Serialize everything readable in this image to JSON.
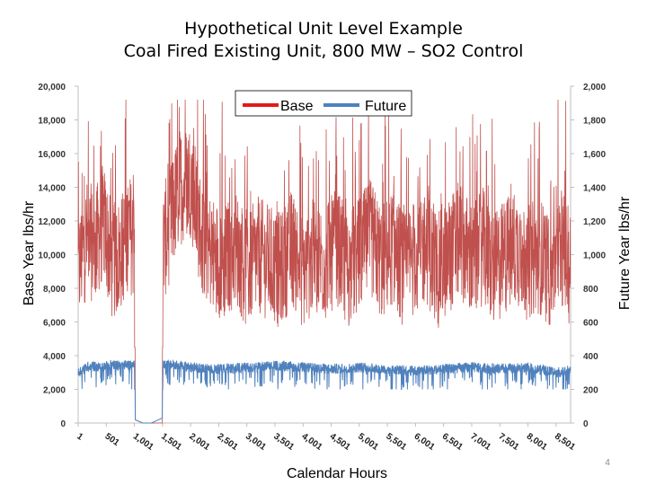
{
  "slide": {
    "title_line1": "Hypothetical Unit Level Example",
    "title_line2": "Coal Fired Existing Unit, 800 MW – SO2 Control",
    "page_number": "4"
  },
  "colors": {
    "base": "#c0504d",
    "future": "#4f81bd",
    "legend_base": "#e31a1c",
    "legend_future": "#4f81bd",
    "axis": "#bfbfbf"
  },
  "chart_data": {
    "type": "line",
    "xlabel": "Calendar Hours",
    "ylabel_left": "Base Year lbs/hr",
    "ylabel_right": "Future Year lbs/hr",
    "ylim_left": [
      0,
      20000
    ],
    "ylim_right": [
      0,
      2000
    ],
    "xlim": [
      1,
      8760
    ],
    "y_ticks_left": [
      "0",
      "2,000",
      "4,000",
      "6,000",
      "8,000",
      "10,000",
      "12,000",
      "14,000",
      "16,000",
      "18,000",
      "20,000"
    ],
    "y_ticks_right": [
      "0",
      "200",
      "400",
      "600",
      "800",
      "1,000",
      "1,200",
      "1,400",
      "1,600",
      "1,800",
      "2,000"
    ],
    "x_ticks": [
      "1",
      "501",
      "1,001",
      "1,501",
      "2,001",
      "2,501",
      "3,001",
      "3,501",
      "4,001",
      "4,501",
      "5,001",
      "5,501",
      "6,001",
      "6,501",
      "7,001",
      "7,501",
      "8,001",
      "8,501"
    ],
    "grid": false,
    "legend_position": "top-center",
    "series": [
      {
        "name": "Base",
        "axis": "left",
        "x": [
          1,
          150,
          300,
          450,
          600,
          750,
          900,
          1000,
          1010,
          1150,
          1300,
          1500,
          1510,
          1650,
          1800,
          2000,
          2200,
          2400,
          2600,
          2800,
          3000,
          3200,
          3400,
          3600,
          3800,
          4000,
          4200,
          4400,
          4600,
          4800,
          5000,
          5200,
          5400,
          5600,
          5800,
          6000,
          6200,
          6400,
          6600,
          6800,
          7000,
          7200,
          7400,
          7600,
          7800,
          8000,
          8200,
          8400,
          8600,
          8760
        ],
        "y": [
          9000,
          11000,
          10500,
          12000,
          9500,
          10000,
          11500,
          10500,
          200,
          0,
          0,
          0,
          10500,
          12000,
          14000,
          14500,
          11000,
          10000,
          9500,
          10500,
          9000,
          10000,
          9500,
          9000,
          10500,
          9000,
          10000,
          9500,
          10500,
          9000,
          10000,
          11000,
          9500,
          10500,
          9000,
          10000,
          10500,
          9000,
          10000,
          11000,
          9500,
          10500,
          9000,
          10000,
          10500,
          9500,
          10000,
          9000,
          10500,
          9000
        ],
        "range_min": 4500,
        "range_max": 19200
      },
      {
        "name": "Future",
        "axis": "right",
        "x": [
          1,
          200,
          400,
          600,
          800,
          1000,
          1010,
          1150,
          1300,
          1500,
          1510,
          1700,
          2000,
          2500,
          3000,
          3500,
          4000,
          4500,
          5000,
          5500,
          6000,
          6500,
          7000,
          7500,
          8000,
          8500,
          8760
        ],
        "y": [
          300,
          340,
          330,
          350,
          340,
          350,
          20,
          0,
          0,
          30,
          350,
          350,
          330,
          320,
          330,
          340,
          330,
          320,
          330,
          320,
          310,
          320,
          330,
          320,
          330,
          300,
          310
        ],
        "range_min": 200,
        "range_max": 370
      }
    ]
  }
}
